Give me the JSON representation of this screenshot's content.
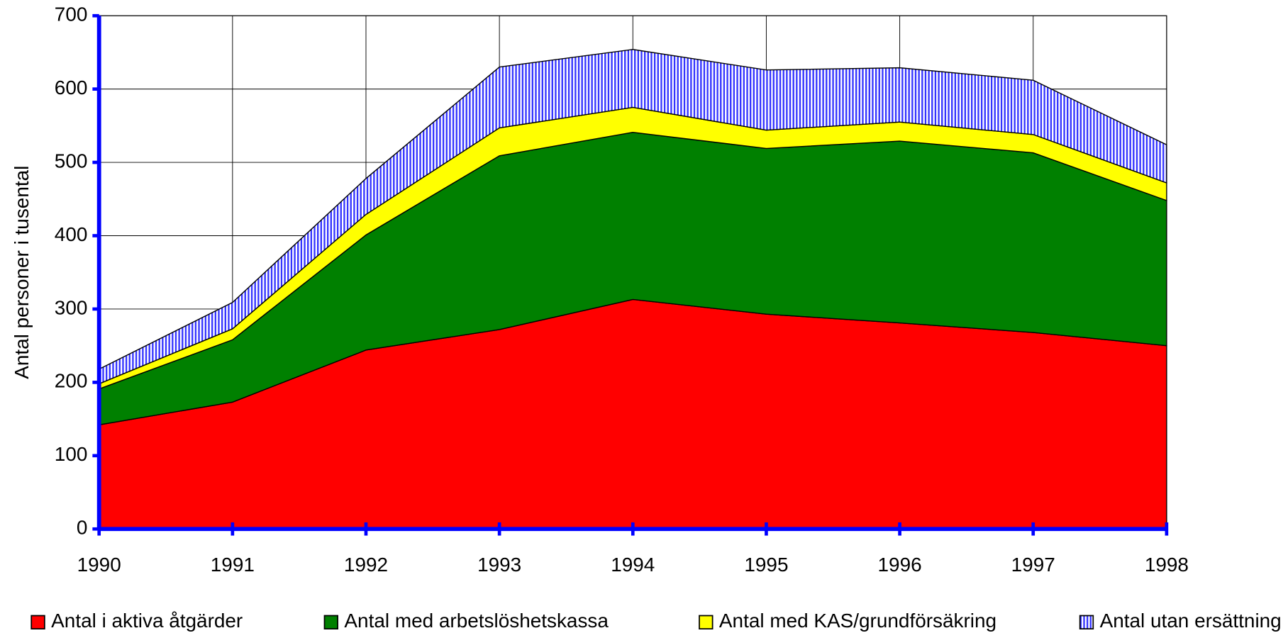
{
  "chart_data": {
    "type": "area",
    "stacked": true,
    "y_axis_label": "Antal personer i tusental",
    "x": [
      1990,
      1991,
      1992,
      1993,
      1994,
      1995,
      1996,
      1997,
      1998
    ],
    "xlim": [
      1990,
      1998
    ],
    "xticks": [
      1990,
      1991,
      1992,
      1993,
      1994,
      1995,
      1996,
      1997,
      1998
    ],
    "ylim": [
      0,
      700
    ],
    "yticks": [
      0,
      100,
      200,
      300,
      400,
      500,
      600,
      700
    ],
    "grid": true,
    "legend": "bottom",
    "series": [
      {
        "name": "Antal i aktiva åtgärder",
        "color": "#ff0000",
        "values": [
          142,
          173,
          244,
          272,
          313,
          293,
          281,
          268,
          250
        ]
      },
      {
        "name": "Antal med arbetslöshetskassa",
        "color": "#008000",
        "values": [
          49,
          85,
          157,
          237,
          228,
          226,
          248,
          245,
          198
        ]
      },
      {
        "name": "Antal med KAS/grundförsäkring",
        "color": "#ffff00",
        "values": [
          7,
          15,
          28,
          38,
          34,
          25,
          26,
          25,
          24
        ]
      },
      {
        "name": "Antal utan ersättning",
        "color": "#3333ff",
        "hatch": true,
        "values": [
          20,
          36,
          49,
          83,
          79,
          82,
          74,
          74,
          52
        ]
      }
    ]
  }
}
